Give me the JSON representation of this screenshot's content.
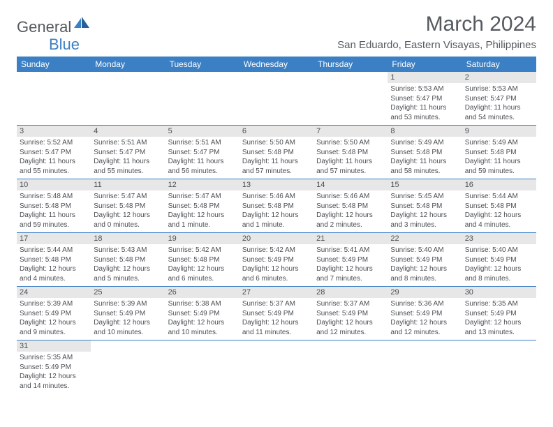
{
  "brand": {
    "part1": "General",
    "part2": "Blue"
  },
  "title": "March 2024",
  "location": "San Eduardo, Eastern Visayas, Philippines",
  "colors": {
    "header_bg": "#3b7fc4",
    "header_text": "#ffffff",
    "daynum_bg": "#e7e7e7",
    "text": "#4a4e52",
    "row_border": "#3b7fc4",
    "page_bg": "#ffffff"
  },
  "typography": {
    "title_fontsize": 30,
    "location_fontsize": 15,
    "dayhead_fontsize": 12,
    "daynum_fontsize": 11,
    "body_fontsize": 10
  },
  "day_headers": [
    "Sunday",
    "Monday",
    "Tuesday",
    "Wednesday",
    "Thursday",
    "Friday",
    "Saturday"
  ],
  "weeks": [
    [
      null,
      null,
      null,
      null,
      null,
      {
        "n": "1",
        "sunrise": "5:53 AM",
        "sunset": "5:47 PM",
        "daylight": "11 hours and 53 minutes."
      },
      {
        "n": "2",
        "sunrise": "5:53 AM",
        "sunset": "5:47 PM",
        "daylight": "11 hours and 54 minutes."
      }
    ],
    [
      {
        "n": "3",
        "sunrise": "5:52 AM",
        "sunset": "5:47 PM",
        "daylight": "11 hours and 55 minutes."
      },
      {
        "n": "4",
        "sunrise": "5:51 AM",
        "sunset": "5:47 PM",
        "daylight": "11 hours and 55 minutes."
      },
      {
        "n": "5",
        "sunrise": "5:51 AM",
        "sunset": "5:47 PM",
        "daylight": "11 hours and 56 minutes."
      },
      {
        "n": "6",
        "sunrise": "5:50 AM",
        "sunset": "5:48 PM",
        "daylight": "11 hours and 57 minutes."
      },
      {
        "n": "7",
        "sunrise": "5:50 AM",
        "sunset": "5:48 PM",
        "daylight": "11 hours and 57 minutes."
      },
      {
        "n": "8",
        "sunrise": "5:49 AM",
        "sunset": "5:48 PM",
        "daylight": "11 hours and 58 minutes."
      },
      {
        "n": "9",
        "sunrise": "5:49 AM",
        "sunset": "5:48 PM",
        "daylight": "11 hours and 59 minutes."
      }
    ],
    [
      {
        "n": "10",
        "sunrise": "5:48 AM",
        "sunset": "5:48 PM",
        "daylight": "11 hours and 59 minutes."
      },
      {
        "n": "11",
        "sunrise": "5:47 AM",
        "sunset": "5:48 PM",
        "daylight": "12 hours and 0 minutes."
      },
      {
        "n": "12",
        "sunrise": "5:47 AM",
        "sunset": "5:48 PM",
        "daylight": "12 hours and 1 minute."
      },
      {
        "n": "13",
        "sunrise": "5:46 AM",
        "sunset": "5:48 PM",
        "daylight": "12 hours and 1 minute."
      },
      {
        "n": "14",
        "sunrise": "5:46 AM",
        "sunset": "5:48 PM",
        "daylight": "12 hours and 2 minutes."
      },
      {
        "n": "15",
        "sunrise": "5:45 AM",
        "sunset": "5:48 PM",
        "daylight": "12 hours and 3 minutes."
      },
      {
        "n": "16",
        "sunrise": "5:44 AM",
        "sunset": "5:48 PM",
        "daylight": "12 hours and 4 minutes."
      }
    ],
    [
      {
        "n": "17",
        "sunrise": "5:44 AM",
        "sunset": "5:48 PM",
        "daylight": "12 hours and 4 minutes."
      },
      {
        "n": "18",
        "sunrise": "5:43 AM",
        "sunset": "5:48 PM",
        "daylight": "12 hours and 5 minutes."
      },
      {
        "n": "19",
        "sunrise": "5:42 AM",
        "sunset": "5:48 PM",
        "daylight": "12 hours and 6 minutes."
      },
      {
        "n": "20",
        "sunrise": "5:42 AM",
        "sunset": "5:49 PM",
        "daylight": "12 hours and 6 minutes."
      },
      {
        "n": "21",
        "sunrise": "5:41 AM",
        "sunset": "5:49 PM",
        "daylight": "12 hours and 7 minutes."
      },
      {
        "n": "22",
        "sunrise": "5:40 AM",
        "sunset": "5:49 PM",
        "daylight": "12 hours and 8 minutes."
      },
      {
        "n": "23",
        "sunrise": "5:40 AM",
        "sunset": "5:49 PM",
        "daylight": "12 hours and 8 minutes."
      }
    ],
    [
      {
        "n": "24",
        "sunrise": "5:39 AM",
        "sunset": "5:49 PM",
        "daylight": "12 hours and 9 minutes."
      },
      {
        "n": "25",
        "sunrise": "5:39 AM",
        "sunset": "5:49 PM",
        "daylight": "12 hours and 10 minutes."
      },
      {
        "n": "26",
        "sunrise": "5:38 AM",
        "sunset": "5:49 PM",
        "daylight": "12 hours and 10 minutes."
      },
      {
        "n": "27",
        "sunrise": "5:37 AM",
        "sunset": "5:49 PM",
        "daylight": "12 hours and 11 minutes."
      },
      {
        "n": "28",
        "sunrise": "5:37 AM",
        "sunset": "5:49 PM",
        "daylight": "12 hours and 12 minutes."
      },
      {
        "n": "29",
        "sunrise": "5:36 AM",
        "sunset": "5:49 PM",
        "daylight": "12 hours and 12 minutes."
      },
      {
        "n": "30",
        "sunrise": "5:35 AM",
        "sunset": "5:49 PM",
        "daylight": "12 hours and 13 minutes."
      }
    ],
    [
      {
        "n": "31",
        "sunrise": "5:35 AM",
        "sunset": "5:49 PM",
        "daylight": "12 hours and 14 minutes."
      },
      null,
      null,
      null,
      null,
      null,
      null
    ]
  ],
  "labels": {
    "sunrise": "Sunrise:",
    "sunset": "Sunset:",
    "daylight": "Daylight:"
  }
}
